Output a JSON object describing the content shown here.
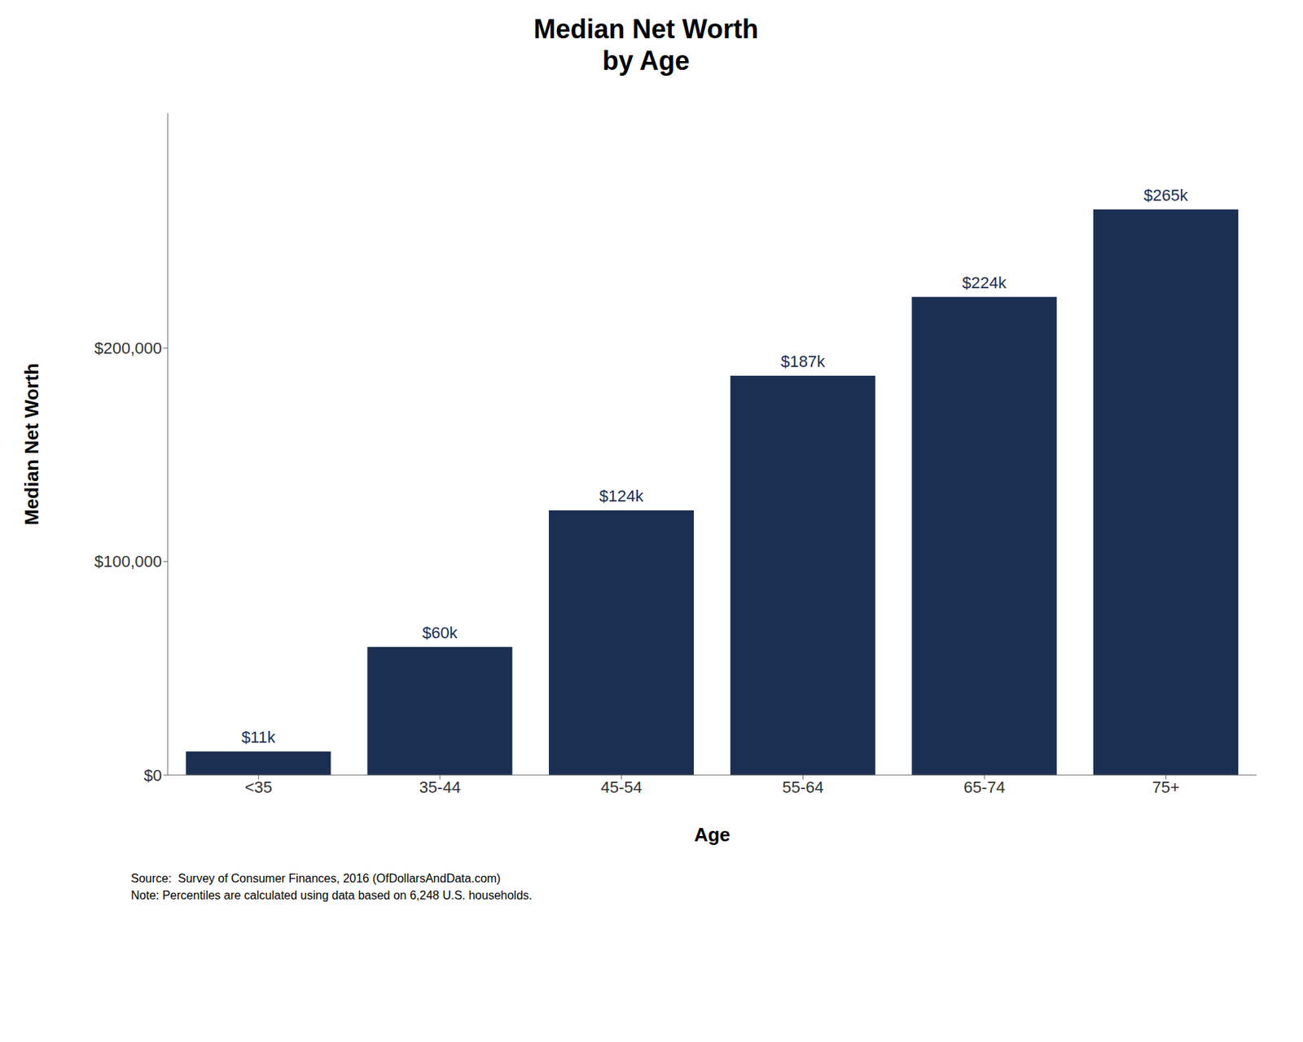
{
  "chart_data": {
    "type": "bar",
    "title": "Median Net Worth\nby Age",
    "xlabel": "Age",
    "ylabel": "Median Net Worth",
    "categories": [
      "<35",
      "35-44",
      "45-54",
      "55-64",
      "65-74",
      "75+"
    ],
    "values": [
      11000,
      60000,
      124000,
      187000,
      224000,
      265000
    ],
    "value_labels": [
      "$11k",
      "$60k",
      "$124k",
      "$187k",
      "$224k",
      "$265k"
    ],
    "data_labels": true,
    "color": "#1b2f52",
    "ylim": [
      0,
      310000
    ],
    "yticks": [
      {
        "value": 0,
        "label": "$0"
      },
      {
        "value": 100000,
        "label": "$100,000"
      },
      {
        "value": 200000,
        "label": "$200,000"
      }
    ],
    "grid": false,
    "annotations": [
      "Source:  Survey of Consumer Finances, 2016 (OfDollarsAndData.com)\nNote: Percentiles are calculated using data based on 6,248 U.S. households."
    ]
  }
}
